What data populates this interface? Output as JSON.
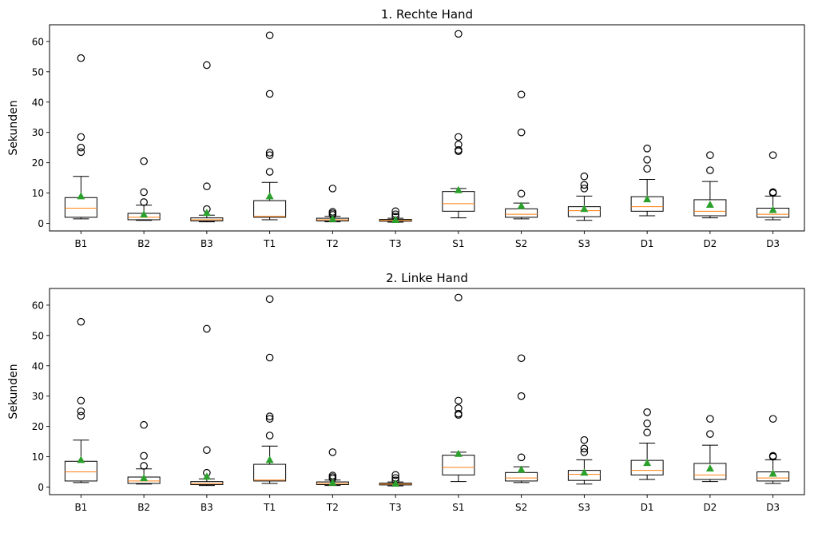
{
  "chart_data": [
    {
      "type": "boxplot",
      "title": "1. Rechte Hand",
      "xlabel": "",
      "ylabel": "Sekunden",
      "ylim": [
        -2.5,
        65.5
      ],
      "yticks": [
        0,
        10,
        20,
        30,
        40,
        50,
        60
      ],
      "grid": false,
      "categories": [
        "B1",
        "B2",
        "B3",
        "T1",
        "T2",
        "T3",
        "S1",
        "S2",
        "S3",
        "D1",
        "D2",
        "D3"
      ],
      "boxes": [
        {
          "whislo": 1.5,
          "q1": 2.0,
          "med": 5.0,
          "q3": 8.5,
          "whishi": 15.5,
          "mean": 9.0,
          "fliers": [
            23.5,
            25.0,
            28.5,
            54.5
          ]
        },
        {
          "whislo": 1.0,
          "q1": 1.2,
          "med": 2.0,
          "q3": 3.3,
          "whishi": 6.0,
          "mean": 3.0,
          "fliers": [
            7.0,
            10.3,
            20.5
          ]
        },
        {
          "whislo": 0.5,
          "q1": 0.8,
          "med": 1.2,
          "q3": 1.8,
          "whishi": 2.7,
          "mean": 3.5,
          "fliers": [
            4.7,
            12.2,
            52.2
          ]
        },
        {
          "whislo": 1.2,
          "q1": 2.0,
          "med": 2.3,
          "q3": 7.5,
          "whishi": 13.5,
          "mean": 9.0,
          "fliers": [
            17.0,
            22.5,
            23.3,
            42.7,
            62.0
          ]
        },
        {
          "whislo": 0.5,
          "q1": 0.8,
          "med": 1.2,
          "q3": 1.7,
          "whishi": 2.3,
          "mean": 1.5,
          "fliers": [
            2.8,
            3.3,
            3.8,
            11.5
          ]
        },
        {
          "whislo": 0.4,
          "q1": 0.7,
          "med": 1.0,
          "q3": 1.3,
          "whishi": 1.7,
          "mean": 1.2,
          "fliers": [
            2.2,
            3.0,
            4.0
          ]
        },
        {
          "whislo": 1.8,
          "q1": 4.0,
          "med": 6.5,
          "q3": 10.5,
          "whishi": 11.5,
          "mean": 11.0,
          "fliers": [
            23.8,
            24.2,
            26.0,
            28.5,
            62.5
          ]
        },
        {
          "whislo": 1.5,
          "q1": 2.0,
          "med": 3.0,
          "q3": 4.8,
          "whishi": 6.7,
          "mean": 5.8,
          "fliers": [
            9.8,
            30.0,
            42.5
          ]
        },
        {
          "whislo": 1.0,
          "q1": 2.2,
          "med": 4.2,
          "q3": 5.5,
          "whishi": 9.0,
          "mean": 4.8,
          "fliers": [
            11.5,
            12.7,
            15.5
          ]
        },
        {
          "whislo": 2.5,
          "q1": 4.0,
          "med": 5.5,
          "q3": 8.8,
          "whishi": 14.5,
          "mean": 8.0,
          "fliers": [
            18.0,
            21.0,
            24.7
          ]
        },
        {
          "whislo": 1.8,
          "q1": 2.5,
          "med": 4.0,
          "q3": 7.8,
          "whishi": 13.8,
          "mean": 6.2,
          "fliers": [
            17.5,
            22.5
          ]
        },
        {
          "whislo": 1.2,
          "q1": 2.0,
          "med": 3.0,
          "q3": 5.0,
          "whishi": 9.0,
          "mean": 4.5,
          "fliers": [
            10.0,
            10.3,
            22.5
          ]
        }
      ]
    },
    {
      "type": "boxplot",
      "title": "2. Linke Hand",
      "xlabel": "",
      "ylabel": "Sekunden",
      "ylim": [
        -2.5,
        65.5
      ],
      "yticks": [
        0,
        10,
        20,
        30,
        40,
        50,
        60
      ],
      "grid": false,
      "categories": [
        "B1",
        "B2",
        "B3",
        "T1",
        "T2",
        "T3",
        "S1",
        "S2",
        "S3",
        "D1",
        "D2",
        "D3"
      ],
      "boxes": [
        {
          "whislo": 1.5,
          "q1": 2.0,
          "med": 5.0,
          "q3": 8.5,
          "whishi": 15.5,
          "mean": 9.0,
          "fliers": [
            23.5,
            25.0,
            28.5,
            54.5
          ]
        },
        {
          "whislo": 1.0,
          "q1": 1.2,
          "med": 2.0,
          "q3": 3.3,
          "whishi": 6.0,
          "mean": 3.0,
          "fliers": [
            7.0,
            10.3,
            20.5
          ]
        },
        {
          "whislo": 0.5,
          "q1": 0.8,
          "med": 1.2,
          "q3": 1.8,
          "whishi": 2.7,
          "mean": 3.5,
          "fliers": [
            4.7,
            12.2,
            52.2
          ]
        },
        {
          "whislo": 1.2,
          "q1": 2.0,
          "med": 2.3,
          "q3": 7.5,
          "whishi": 13.5,
          "mean": 9.0,
          "fliers": [
            17.0,
            22.5,
            23.3,
            42.7,
            62.0
          ]
        },
        {
          "whislo": 0.5,
          "q1": 0.8,
          "med": 1.2,
          "q3": 1.7,
          "whishi": 2.3,
          "mean": 1.5,
          "fliers": [
            2.8,
            3.3,
            3.8,
            11.5
          ]
        },
        {
          "whislo": 0.4,
          "q1": 0.7,
          "med": 1.0,
          "q3": 1.3,
          "whishi": 1.7,
          "mean": 1.2,
          "fliers": [
            2.2,
            3.0,
            4.0
          ]
        },
        {
          "whislo": 1.8,
          "q1": 4.0,
          "med": 6.5,
          "q3": 10.5,
          "whishi": 11.5,
          "mean": 11.0,
          "fliers": [
            23.8,
            24.2,
            26.0,
            28.5,
            62.5
          ]
        },
        {
          "whislo": 1.5,
          "q1": 2.0,
          "med": 3.0,
          "q3": 4.8,
          "whishi": 6.7,
          "mean": 5.8,
          "fliers": [
            9.8,
            30.0,
            42.5
          ]
        },
        {
          "whislo": 1.0,
          "q1": 2.2,
          "med": 4.2,
          "q3": 5.5,
          "whishi": 9.0,
          "mean": 4.8,
          "fliers": [
            11.5,
            12.7,
            15.5
          ]
        },
        {
          "whislo": 2.5,
          "q1": 4.0,
          "med": 5.5,
          "q3": 8.8,
          "whishi": 14.5,
          "mean": 8.0,
          "fliers": [
            18.0,
            21.0,
            24.7
          ]
        },
        {
          "whislo": 1.8,
          "q1": 2.5,
          "med": 4.0,
          "q3": 7.8,
          "whishi": 13.8,
          "mean": 6.2,
          "fliers": [
            17.5,
            22.5
          ]
        },
        {
          "whislo": 1.2,
          "q1": 2.0,
          "med": 3.0,
          "q3": 5.0,
          "whishi": 9.0,
          "mean": 4.5,
          "fliers": [
            10.0,
            10.3,
            22.5
          ]
        }
      ]
    }
  ],
  "colors": {
    "box": "#000000",
    "median": "#ff7f0e",
    "mean": "#2ca02c",
    "flier": "#000000"
  }
}
